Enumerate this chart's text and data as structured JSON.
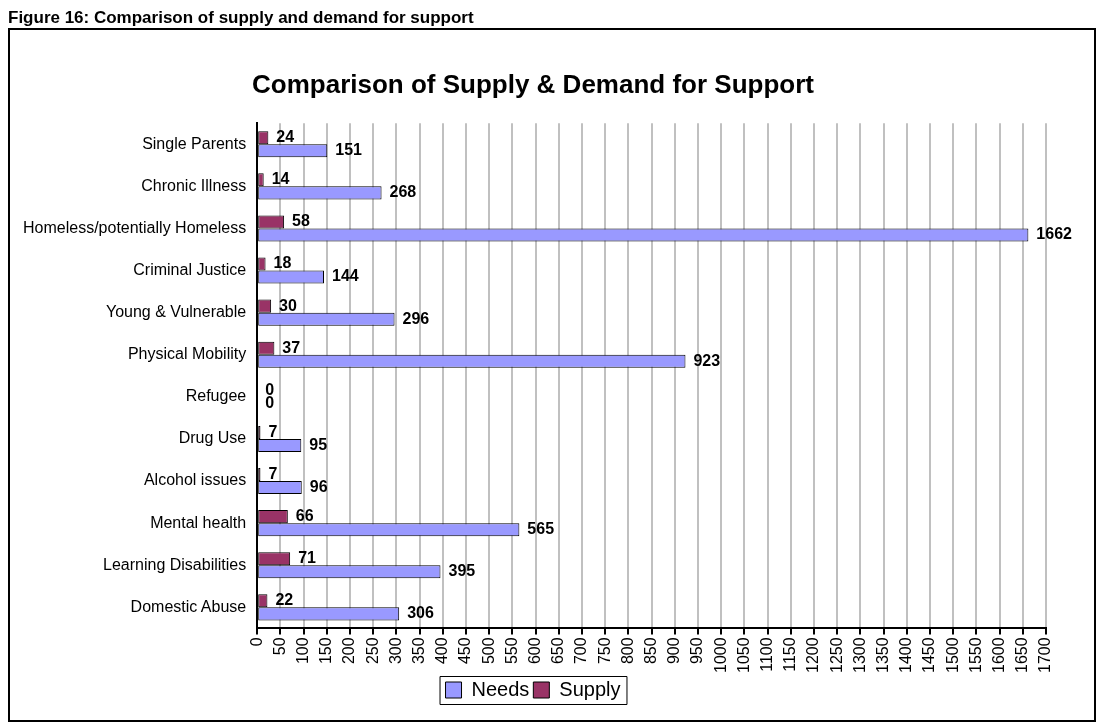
{
  "chart_data": {
    "type": "bar",
    "orientation": "horizontal",
    "title": "Comparison of Supply & Demand for Support",
    "annotations": [
      "Figure 16: Comparison of supply and demand for support"
    ],
    "categories": [
      "Single Parents",
      "Chronic Illness",
      "Homeless/potentially Homeless",
      "Criminal Justice",
      "Young & Vulnerable",
      "Physical Mobility",
      "Refugee",
      "Drug Use",
      "Alcohol issues",
      "Mental health",
      "Learning Disabilities",
      "Domestic Abuse"
    ],
    "series": [
      {
        "name": "Needs",
        "color": "#9999ff",
        "values": [
          151,
          268,
          1662,
          144,
          296,
          923,
          0,
          95,
          96,
          565,
          395,
          306
        ]
      },
      {
        "name": "Supply",
        "color": "#993366",
        "values": [
          24,
          14,
          58,
          18,
          30,
          37,
          0,
          7,
          7,
          66,
          71,
          22
        ]
      }
    ],
    "xlim": [
      0,
      1700
    ],
    "xticks": [
      0,
      50,
      100,
      150,
      200,
      250,
      300,
      350,
      400,
      450,
      500,
      550,
      600,
      650,
      700,
      750,
      800,
      850,
      900,
      950,
      1000,
      1050,
      1100,
      1150,
      1200,
      1250,
      1300,
      1350,
      1400,
      1450,
      1500,
      1550,
      1600,
      1650,
      1700
    ],
    "grid": "x",
    "legend": "bottom",
    "data_labels": true
  }
}
